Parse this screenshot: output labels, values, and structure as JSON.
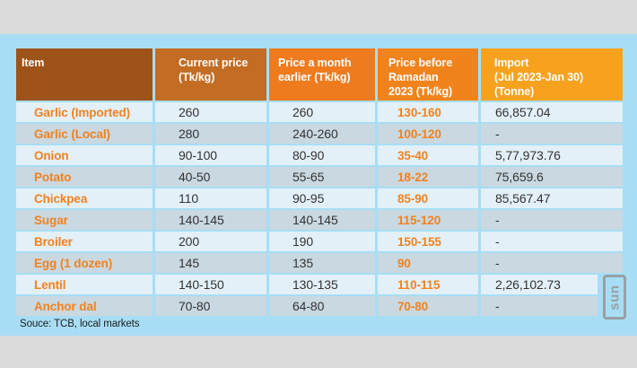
{
  "page": {
    "outer_background": "#dbdbdb",
    "card_background": "#a7def5"
  },
  "table": {
    "columns": [
      {
        "label": "Item",
        "bg": "#9d5319"
      },
      {
        "label": "Current price\n(Tk/kg)",
        "bg": "#c26c24"
      },
      {
        "label": "Price a month\nearlier (Tk/kg)",
        "bg": "#ee7b1e"
      },
      {
        "label": "Price before\nRamadan\n2023 (Tk/kg)",
        "bg": "#f1831d"
      },
      {
        "label": "Import\n(Jul 2023-Jan 30)\n(Tonne)",
        "bg": "#f7a21f"
      }
    ],
    "rows": [
      [
        "Garlic (Imported)",
        "260",
        "260",
        "130-160",
        "66,857.04"
      ],
      [
        "Garlic (Local)",
        "280",
        "240-260",
        "100-120",
        "-"
      ],
      [
        "Onion",
        "90-100",
        "80-90",
        "35-40",
        "5,77,973.76"
      ],
      [
        "Potato",
        "40-50",
        "55-65",
        "18-22",
        "75,659.6"
      ],
      [
        "Chickpea",
        "110",
        "90-95",
        "85-90",
        "85,567.47"
      ],
      [
        "Sugar",
        "140-145",
        "140-145",
        "115-120",
        "-"
      ],
      [
        "Broiler",
        "200",
        "190",
        "150-155",
        "-"
      ],
      [
        "Egg (1 dozen)",
        "145",
        "135",
        "90",
        "-"
      ],
      [
        "Lentil",
        "140-150",
        "130-135",
        "110-115",
        "2,26,102.73"
      ],
      [
        "Anchor dal",
        "70-80",
        "64-80",
        "70-80",
        "-"
      ]
    ],
    "row_light": "#e3f0f8",
    "row_dark": "#c9d8e1",
    "item_text_color": "#f0821f",
    "value_text_color": "#333333",
    "source": "Souce: TCB, local markets"
  },
  "logo": {
    "text": "sun",
    "color": "#97a0a4"
  }
}
